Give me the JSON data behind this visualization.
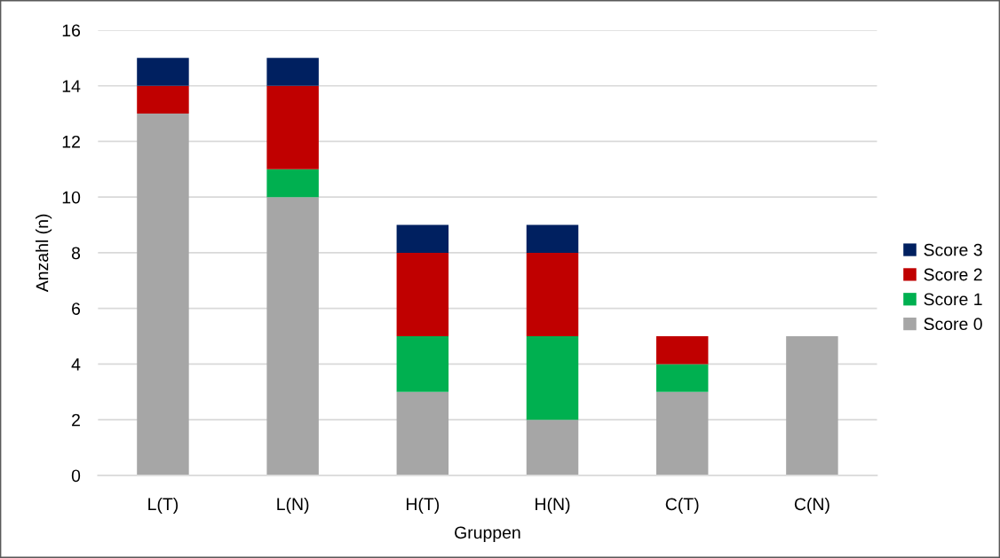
{
  "chart_data": {
    "type": "bar",
    "stacked": true,
    "categories": [
      "L(T)",
      "L(N)",
      "H(T)",
      "H(N)",
      "C(T)",
      "C(N)"
    ],
    "series": [
      {
        "name": "Score 0",
        "color": "#a6a6a6",
        "values": [
          13,
          10,
          3,
          2,
          3,
          5
        ]
      },
      {
        "name": "Score 1",
        "color": "#00b050",
        "values": [
          0,
          1,
          2,
          3,
          1,
          0
        ]
      },
      {
        "name": "Score 2",
        "color": "#c00000",
        "values": [
          1,
          3,
          3,
          3,
          1,
          0
        ]
      },
      {
        "name": "Score 3",
        "color": "#002060",
        "values": [
          1,
          1,
          1,
          1,
          0,
          0
        ]
      }
    ],
    "xlabel": "Gruppen",
    "ylabel": "Anzahl (n)",
    "ylim": [
      0,
      16
    ],
    "yticks": [
      0,
      2,
      4,
      6,
      8,
      10,
      12,
      14,
      16
    ],
    "grid": "y",
    "legend": "right"
  }
}
